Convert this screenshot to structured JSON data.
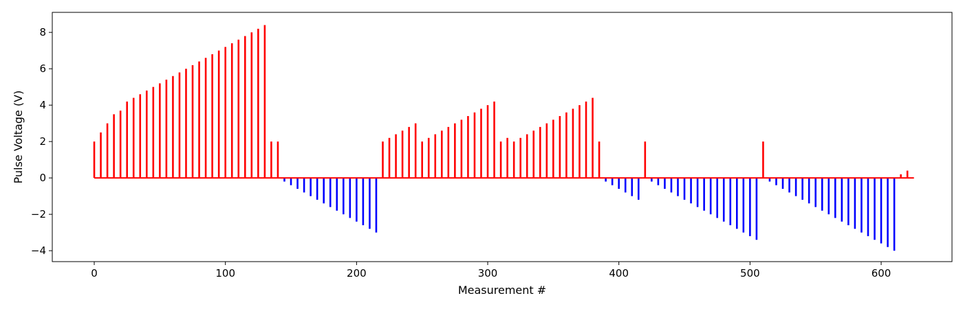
{
  "chart_data": {
    "type": "bar",
    "xlabel": "Measurement #",
    "ylabel": "Pulse Voltage (V)",
    "xlim": [
      -32,
      654
    ],
    "ylim": [
      -4.6,
      9.1
    ],
    "xticks": [
      0,
      100,
      200,
      300,
      400,
      500,
      600
    ],
    "yticks": [
      -4,
      -2,
      0,
      2,
      4,
      6,
      8
    ],
    "grid": false,
    "legend": "none",
    "colors": {
      "positive": "#ff0000",
      "negative": "#0000ff",
      "axis": "#000000"
    },
    "baseline": {
      "x_start": 0,
      "x_end": 625,
      "y": 0
    },
    "x": [
      0,
      5,
      10,
      15,
      20,
      25,
      30,
      35,
      40,
      45,
      50,
      55,
      60,
      65,
      70,
      75,
      80,
      85,
      90,
      95,
      100,
      105,
      110,
      115,
      120,
      125,
      130,
      135,
      140,
      145,
      150,
      155,
      160,
      165,
      170,
      175,
      180,
      185,
      190,
      195,
      200,
      205,
      210,
      215,
      220,
      225,
      230,
      235,
      240,
      245,
      250,
      255,
      260,
      265,
      270,
      275,
      280,
      285,
      290,
      295,
      300,
      305,
      310,
      315,
      320,
      325,
      330,
      335,
      340,
      345,
      350,
      355,
      360,
      365,
      370,
      375,
      380,
      385,
      390,
      395,
      400,
      405,
      410,
      415,
      420,
      425,
      430,
      435,
      440,
      445,
      450,
      455,
      460,
      465,
      470,
      475,
      480,
      485,
      490,
      495,
      500,
      505,
      510,
      515,
      520,
      525,
      530,
      535,
      540,
      545,
      550,
      555,
      560,
      565,
      570,
      575,
      580,
      585,
      590,
      595,
      600,
      605,
      610,
      615,
      620
    ],
    "values": [
      2.0,
      2.5,
      3.0,
      3.5,
      3.7,
      4.2,
      4.4,
      4.6,
      4.8,
      5.0,
      5.2,
      5.4,
      5.6,
      5.8,
      6.0,
      6.2,
      6.4,
      6.6,
      6.8,
      7.0,
      7.2,
      7.4,
      7.6,
      7.8,
      8.0,
      8.2,
      8.4,
      2.0,
      2.0,
      -0.2,
      -0.4,
      -0.6,
      -0.8,
      -1.0,
      -1.2,
      -1.4,
      -1.6,
      -1.8,
      -2.0,
      -2.2,
      -2.4,
      -2.6,
      -2.8,
      -3.0,
      2.0,
      2.2,
      2.4,
      2.6,
      2.8,
      3.0,
      2.0,
      2.2,
      2.4,
      2.6,
      2.8,
      3.0,
      3.2,
      3.4,
      3.6,
      3.8,
      4.0,
      4.2,
      2.0,
      2.2,
      2.0,
      2.2,
      2.4,
      2.6,
      2.8,
      3.0,
      3.2,
      3.4,
      3.6,
      3.8,
      4.0,
      4.2,
      4.4,
      2.0,
      -0.2,
      -0.4,
      -0.6,
      -0.8,
      -1.0,
      -1.2,
      2.0,
      -0.2,
      -0.4,
      -0.6,
      -0.8,
      -1.0,
      -1.2,
      -1.4,
      -1.6,
      -1.8,
      -2.0,
      -2.2,
      -2.4,
      -2.6,
      -2.8,
      -3.0,
      -3.2,
      -3.4,
      2.0,
      -0.2,
      -0.4,
      -0.6,
      -0.8,
      -1.0,
      -1.2,
      -1.4,
      -1.6,
      -1.8,
      -2.0,
      -2.2,
      -2.4,
      -2.6,
      -2.8,
      -3.0,
      -3.2,
      -3.4,
      -3.6,
      -3.8,
      -4.0,
      0.2,
      0.4
    ]
  }
}
